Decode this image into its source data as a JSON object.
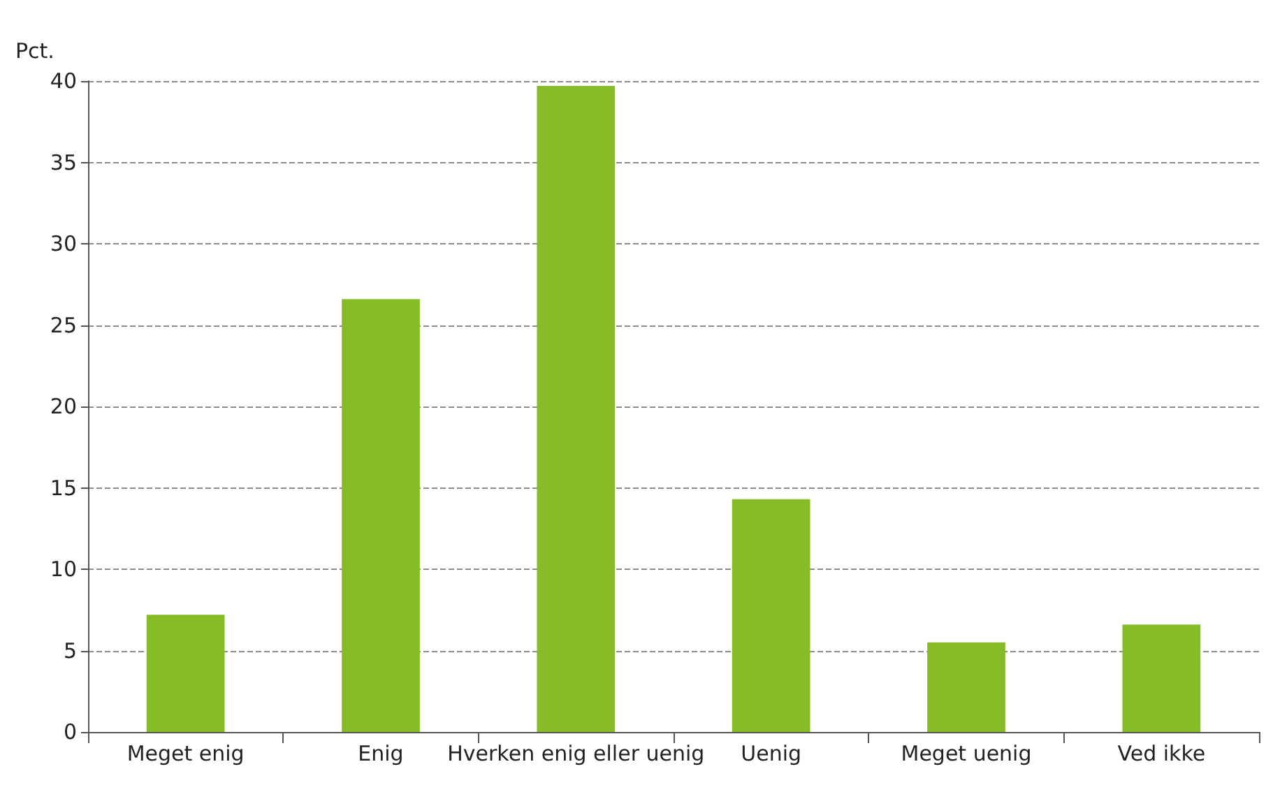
{
  "chart_data": {
    "type": "bar",
    "ylabel": "Pct.",
    "categories": [
      "Meget enig",
      "Enig",
      "Hverken enig eller uenig",
      "Uenig",
      "Meget uenig",
      "Ved ikke"
    ],
    "values": [
      7.2,
      26.6,
      39.7,
      14.3,
      5.5,
      6.6
    ],
    "color": "#86bc25",
    "ylim": [
      0,
      40
    ],
    "yticks": [
      0,
      5,
      10,
      15,
      20,
      25,
      30,
      35,
      40
    ],
    "grid": "y"
  }
}
